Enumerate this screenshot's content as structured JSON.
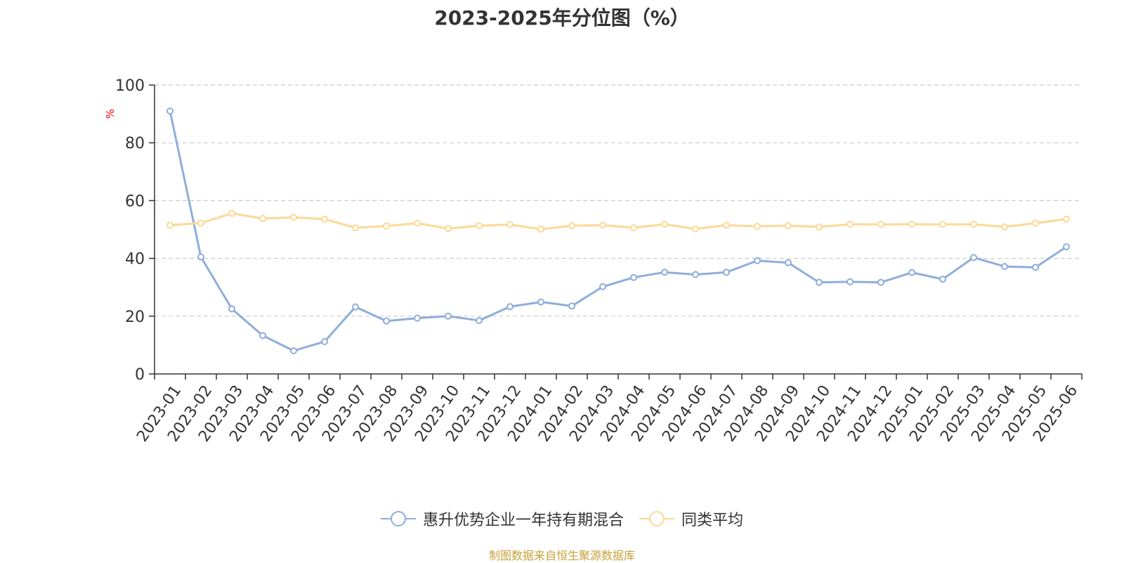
{
  "chart_data": {
    "type": "line",
    "title": "2023-2025年分位图（%）",
    "ylabel": "%",
    "xlabel": "",
    "ylim": [
      0,
      100
    ],
    "yticks": [
      0,
      20,
      40,
      60,
      80,
      100
    ],
    "grid": true,
    "legend_position": "bottom-center",
    "categories": [
      "2023-01",
      "2023-02",
      "2023-03",
      "2023-04",
      "2023-05",
      "2023-06",
      "2023-07",
      "2023-08",
      "2023-09",
      "2023-10",
      "2023-11",
      "2023-12",
      "2024-01",
      "2024-02",
      "2024-03",
      "2024-04",
      "2024-05",
      "2024-06",
      "2024-07",
      "2024-08",
      "2024-09",
      "2024-10",
      "2024-11",
      "2024-12",
      "2025-01",
      "2025-02",
      "2025-03",
      "2025-04",
      "2025-05",
      "2025-06"
    ],
    "series": [
      {
        "name": "惠升优势企业一年持有期混合",
        "color": "#8eaedb",
        "values": [
          91.0,
          40.5,
          22.5,
          13.3,
          8.0,
          11.2,
          23.2,
          18.3,
          19.3,
          20.0,
          18.5,
          23.3,
          24.9,
          23.5,
          30.2,
          33.4,
          35.2,
          34.4,
          35.2,
          39.2,
          38.5,
          31.7,
          31.9,
          31.7,
          35.1,
          32.8,
          40.3,
          37.2,
          36.9,
          44.0
        ]
      },
      {
        "name": "同类平均",
        "color": "#fcd995",
        "values": [
          51.5,
          52.2,
          55.6,
          53.8,
          54.2,
          53.6,
          50.6,
          51.2,
          52.2,
          50.3,
          51.3,
          51.7,
          50.1,
          51.3,
          51.5,
          50.6,
          51.8,
          50.2,
          51.5,
          51.1,
          51.3,
          50.9,
          51.8,
          51.8,
          51.8,
          51.8,
          51.8,
          50.9,
          52.2,
          53.6
        ]
      }
    ],
    "source_note": "制图数据来自恒生聚源数据库"
  },
  "colors": {
    "axis": "#333333",
    "grid": "#cccccc",
    "ylabel": "#ff0000",
    "source": "#c9a03a"
  }
}
